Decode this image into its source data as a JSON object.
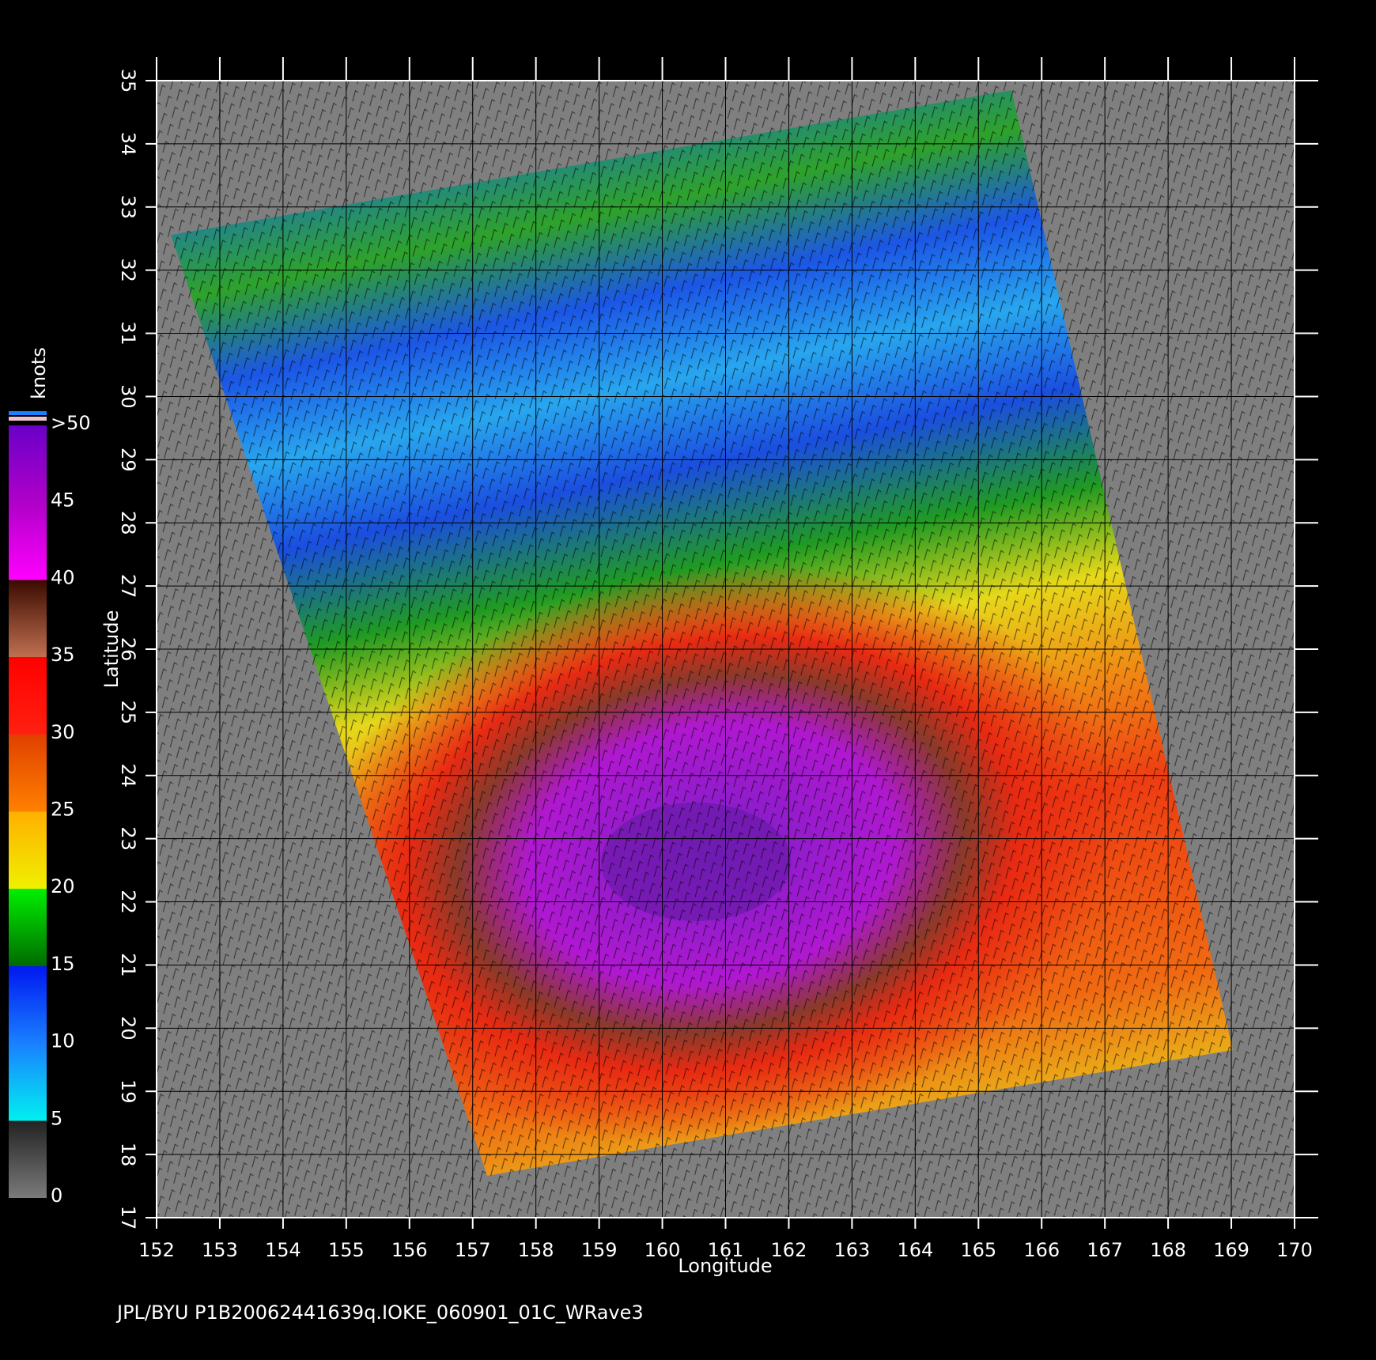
{
  "map": {
    "x_label": "Longitude",
    "y_label": "Latitude",
    "xlim": [
      152,
      170
    ],
    "ylim": [
      17,
      35
    ],
    "xticks": [
      152,
      153,
      154,
      155,
      156,
      157,
      158,
      159,
      160,
      161,
      162,
      163,
      164,
      165,
      166,
      167,
      168,
      169,
      170
    ],
    "yticks": [
      17,
      18,
      19,
      20,
      21,
      22,
      23,
      24,
      25,
      26,
      27,
      28,
      29,
      30,
      31,
      32,
      33,
      34,
      35
    ],
    "grid": true
  },
  "colorbar": {
    "unit": "knots",
    "lim": [
      0,
      50
    ],
    "ticks": [
      0,
      5,
      10,
      15,
      20,
      25,
      30,
      35,
      40,
      45,
      {
        "value": 50,
        "label": ">50"
      }
    ]
  },
  "footer": "JPL/BYU  P1B20062441639q.IOKE_060901_01C_WRave3"
}
